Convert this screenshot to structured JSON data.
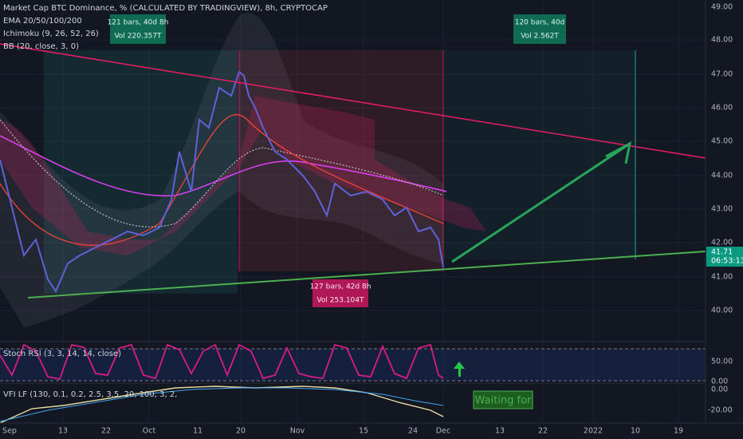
{
  "header": {
    "title": "Market Cap BTC Dominance, % (CALCULATED BY TRADINGVIEW), 8h, CRYPTOCAP",
    "indicators": [
      "EMA 20/50/100/200",
      "Ichimoku (9, 26, 52, 26)",
      "BB (20, close, 3, 0)"
    ]
  },
  "price_axis": {
    "ticks": [
      "49.00",
      "48.00",
      "47.00",
      "46.00",
      "45.00",
      "44.00",
      "43.00",
      "42.00",
      "41.00",
      "40.00"
    ],
    "current_price": "41.71",
    "countdown": "06:53:13"
  },
  "measurements": [
    {
      "bars": "121 bars, 40d 8h",
      "volume": "Vol 220.357T"
    },
    {
      "bars": "120 bars, 40d",
      "volume": "Vol 2.562T"
    },
    {
      "bars": "127 bars, 42d 8h",
      "volume": "Vol 253.104T"
    }
  ],
  "stoch_rsi": {
    "label": "Stoch RSI (3, 3, 14, 14, close)",
    "ticks": [
      "50.00",
      "0.00"
    ]
  },
  "vfi": {
    "label": "VFI LF (130, 0.1, 0.2, 2.5, 3.5, 20, 100, 3, 2,",
    "ticks": [
      "0.00",
      "-20.00"
    ],
    "note": "Waiting for"
  },
  "date_axis": [
    "Sep",
    "13",
    "22",
    "Oct",
    "11",
    "20",
    "Nov",
    "15",
    "24",
    "Dec",
    "13",
    "22",
    "2022",
    "10",
    "19"
  ]
}
